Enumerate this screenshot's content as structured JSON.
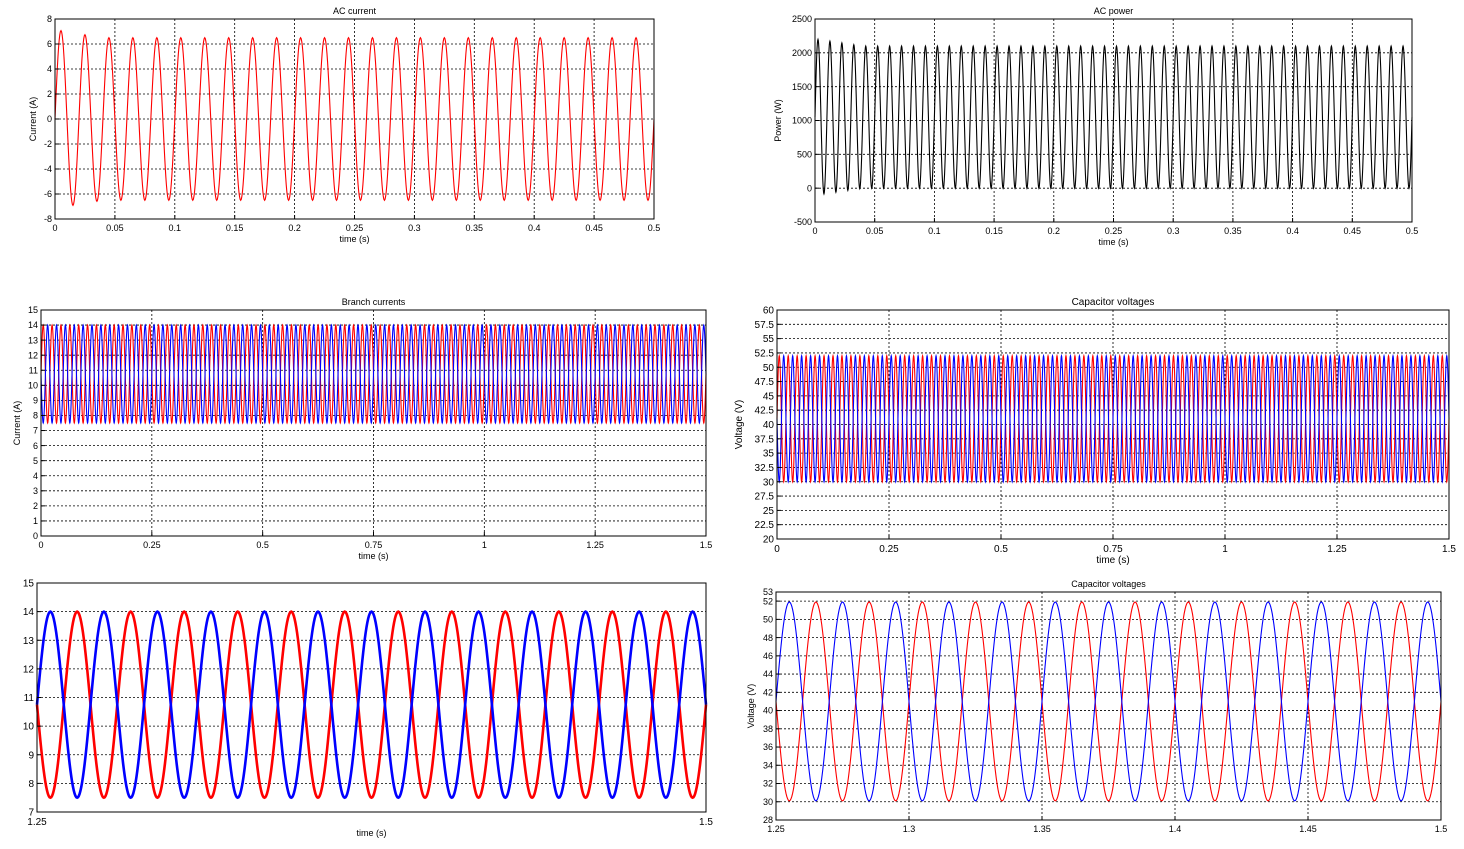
{
  "chart_data": [
    {
      "id": "ac-current",
      "type": "line",
      "title": "AC current",
      "xlabel": "time (s)",
      "ylabel": "Current (A)",
      "xlim": [
        0,
        0.5
      ],
      "ylim": [
        -8,
        8
      ],
      "xticks": [
        0,
        0.05,
        0.1,
        0.15,
        0.2,
        0.25,
        0.3,
        0.35,
        0.4,
        0.45,
        0.5
      ],
      "yticks": [
        -8,
        -6,
        -4,
        -2,
        0,
        2,
        4,
        6,
        8
      ],
      "grid": true,
      "series": [
        {
          "color": "#ff0000",
          "waveform": "sine",
          "frequency_hz": 50,
          "amplitude": 6.5,
          "offset": 0,
          "peak_transient_max": 7.2,
          "peak_transient_min": -7.1
        }
      ]
    },
    {
      "id": "ac-power",
      "type": "line",
      "title": "AC power",
      "xlabel": "time (s)",
      "ylabel": "Power (W)",
      "xlim": [
        0,
        0.5
      ],
      "ylim": [
        -500,
        2500
      ],
      "xticks": [
        0,
        0.05,
        0.1,
        0.15,
        0.2,
        0.25,
        0.3,
        0.35,
        0.4,
        0.45,
        0.5
      ],
      "yticks": [
        -500,
        0,
        500,
        1000,
        1500,
        2000,
        2500
      ],
      "grid": true,
      "series": [
        {
          "color": "#000000",
          "waveform": "sine",
          "frequency_hz": 100,
          "amplitude": 1050,
          "offset": 1050,
          "peak_transient_max": 2350,
          "peak_transient_min": -150
        }
      ]
    },
    {
      "id": "branch-currents",
      "type": "line",
      "title": "Branch currents",
      "xlabel": "time (s)",
      "ylabel": "Current (A)",
      "xlim": [
        0,
        1.5
      ],
      "ylim": [
        0,
        15
      ],
      "xticks": [
        0,
        0.25,
        0.5,
        0.75,
        1,
        1.25,
        1.5
      ],
      "yticks": [
        0,
        1,
        2,
        3,
        4,
        5,
        6,
        7,
        8,
        9,
        10,
        11,
        12,
        13,
        14,
        15
      ],
      "grid": true,
      "series": [
        {
          "color": "#ff0000",
          "waveform": "sine",
          "frequency_hz": 50,
          "amplitude": 3.25,
          "offset": 10.75,
          "phase_deg": 0
        },
        {
          "color": "#0000ff",
          "waveform": "sine",
          "frequency_hz": 50,
          "amplitude": 3.25,
          "offset": 10.75,
          "phase_deg": 180
        }
      ]
    },
    {
      "id": "capacitor-voltages-full",
      "type": "line",
      "title": "Capacitor voltages",
      "xlabel": "time (s)",
      "ylabel": "Voltage (V)",
      "xlim": [
        0,
        1.5
      ],
      "ylim": [
        20,
        60
      ],
      "xticks": [
        0,
        0.25,
        0.5,
        0.75,
        1,
        1.25,
        1.5
      ],
      "yticks": [
        20,
        22.5,
        25,
        27.5,
        30,
        32.5,
        35,
        37.5,
        40,
        42.5,
        45,
        47.5,
        50,
        52.5,
        55,
        57.5,
        60
      ],
      "grid": true,
      "series": [
        {
          "color": "#ff0000",
          "waveform": "sine",
          "frequency_hz": 50,
          "amplitude": 11,
          "offset": 41,
          "phase_deg": 0
        },
        {
          "color": "#0000ff",
          "waveform": "sine",
          "frequency_hz": 50,
          "amplitude": 11,
          "offset": 41,
          "phase_deg": 180
        }
      ]
    },
    {
      "id": "branch-currents-zoom",
      "type": "line",
      "title": "",
      "xlabel": "time (s)",
      "ylabel": "",
      "xlim": [
        1.25,
        1.5
      ],
      "ylim": [
        7,
        15
      ],
      "xticks": [
        1.25,
        1.5
      ],
      "yticks": [
        7,
        8,
        9,
        10,
        11,
        12,
        13,
        14,
        15
      ],
      "grid": true,
      "series": [
        {
          "color": "#ff0000",
          "waveform": "sine",
          "frequency_hz": 50,
          "amplitude": 3.25,
          "offset": 10.75,
          "phase_deg": 0
        },
        {
          "color": "#0000ff",
          "waveform": "sine",
          "frequency_hz": 50,
          "amplitude": 3.25,
          "offset": 10.75,
          "phase_deg": 180
        }
      ]
    },
    {
      "id": "capacitor-voltages-zoom",
      "type": "line",
      "title": "Capacitor voltages",
      "xlabel": "",
      "ylabel": "Voltage (V)",
      "xlim": [
        1.25,
        1.5
      ],
      "ylim": [
        28,
        53
      ],
      "xticks": [
        1.25,
        1.3,
        1.35,
        1.4,
        1.45,
        1.5
      ],
      "yticks": [
        28,
        30,
        32,
        34,
        36,
        38,
        40,
        42,
        44,
        46,
        48,
        50,
        52,
        53
      ],
      "grid": true,
      "series": [
        {
          "color": "#ff0000",
          "waveform": "sine",
          "frequency_hz": 50,
          "amplitude": 10.9,
          "offset": 41,
          "phase_deg": 0
        },
        {
          "color": "#0000ff",
          "waveform": "sine",
          "frequency_hz": 50,
          "amplitude": 10.9,
          "offset": 41,
          "phase_deg": 180
        }
      ]
    }
  ]
}
